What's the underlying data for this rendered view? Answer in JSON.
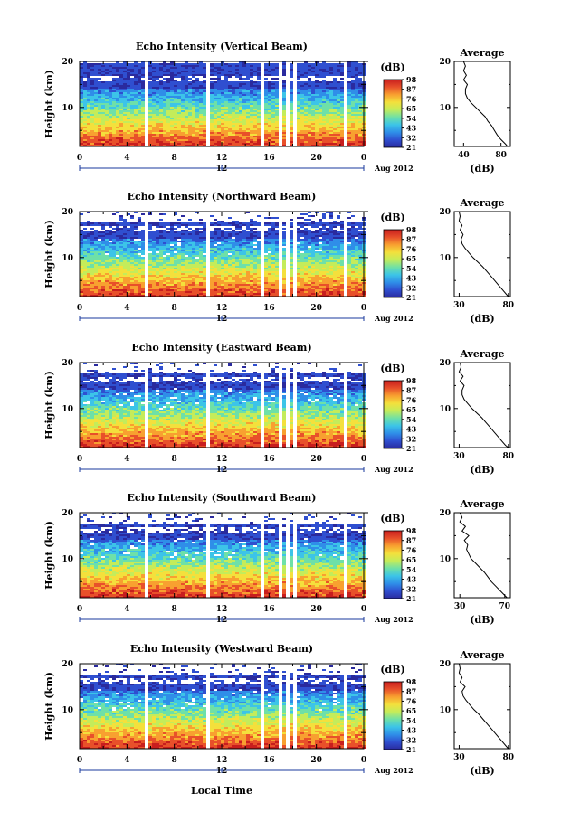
{
  "figure": {
    "date_label": "Aug 2012",
    "xlabel": "Local Time",
    "colorbar_unit": "(dB)",
    "avg_title": "Average",
    "avg_xlabel": "(dB)"
  },
  "chart_data": [
    {
      "type": "heatmap",
      "title": "Echo Intensity (Vertical Beam)",
      "ylabel": "Height (km)",
      "xlim": [
        0,
        24
      ],
      "ylim": [
        1.5,
        20
      ],
      "xticks": [
        "0",
        "4",
        "8",
        "12",
        "16",
        "20",
        "0"
      ],
      "yticks": [
        "20",
        "10"
      ],
      "mid_tick": "12",
      "colorbar_ticks": [
        "98",
        "87",
        "76",
        "65",
        "54",
        "43",
        "32",
        "21"
      ],
      "gaps_hours": [
        [
          5.4,
          5.8
        ],
        [
          10.6,
          11.0
        ],
        [
          15.0,
          15.4
        ],
        [
          16.7,
          17.0
        ],
        [
          17.4,
          17.7
        ],
        [
          17.9,
          18.2
        ],
        [
          22.2,
          22.6
        ]
      ],
      "average": {
        "xticks": [
          "40",
          "80"
        ],
        "xlim": [
          30,
          90
        ],
        "yticks": [
          "20",
          "10"
        ],
        "profile": [
          [
            87,
            1.5
          ],
          [
            85,
            2
          ],
          [
            80,
            3
          ],
          [
            76,
            4
          ],
          [
            73,
            5
          ],
          [
            70,
            6
          ],
          [
            66,
            7
          ],
          [
            63,
            8
          ],
          [
            58,
            9
          ],
          [
            53,
            10
          ],
          [
            48,
            11
          ],
          [
            44,
            12
          ],
          [
            42,
            13
          ],
          [
            42,
            14
          ],
          [
            44,
            15
          ],
          [
            40,
            16
          ],
          [
            43,
            17
          ],
          [
            40,
            18
          ],
          [
            42,
            19
          ],
          [
            40,
            20
          ]
        ]
      }
    },
    {
      "type": "heatmap",
      "title": "Echo Intensity (Northward Beam)",
      "ylabel": "Height (km)",
      "xlim": [
        0,
        24
      ],
      "ylim": [
        1.5,
        20
      ],
      "xticks": [
        "0",
        "4",
        "8",
        "12",
        "16",
        "20",
        "0"
      ],
      "yticks": [
        "20",
        "10"
      ],
      "mid_tick": "12",
      "colorbar_ticks": [
        "98",
        "87",
        "76",
        "65",
        "54",
        "43",
        "32",
        "21"
      ],
      "gaps_hours": [
        [
          5.4,
          5.8
        ],
        [
          10.6,
          11.0
        ],
        [
          15.0,
          15.4
        ],
        [
          16.7,
          17.0
        ],
        [
          17.4,
          17.7
        ],
        [
          17.9,
          18.2
        ],
        [
          22.2,
          22.6
        ]
      ],
      "average": {
        "xticks": [
          "30",
          "80"
        ],
        "xlim": [
          25,
          82
        ],
        "yticks": [
          "20",
          "10"
        ],
        "profile": [
          [
            80,
            1.5
          ],
          [
            78,
            2
          ],
          [
            74,
            3
          ],
          [
            70,
            4
          ],
          [
            66,
            5
          ],
          [
            62,
            6
          ],
          [
            58,
            7
          ],
          [
            54,
            8
          ],
          [
            49,
            9
          ],
          [
            44,
            10
          ],
          [
            40,
            11
          ],
          [
            36,
            12
          ],
          [
            33,
            13
          ],
          [
            32,
            14
          ],
          [
            34,
            15
          ],
          [
            31,
            16
          ],
          [
            33,
            17
          ],
          [
            30,
            18
          ],
          [
            31,
            19
          ],
          [
            30,
            20
          ]
        ]
      }
    },
    {
      "type": "heatmap",
      "title": "Echo Intensity (Eastward Beam)",
      "ylabel": "Height (km)",
      "xlim": [
        0,
        24
      ],
      "ylim": [
        1.5,
        20
      ],
      "xticks": [
        "0",
        "4",
        "8",
        "12",
        "16",
        "20",
        "0"
      ],
      "yticks": [
        "20",
        "10"
      ],
      "mid_tick": "12",
      "colorbar_ticks": [
        "98",
        "87",
        "76",
        "65",
        "54",
        "43",
        "32",
        "21"
      ],
      "gaps_hours": [
        [
          5.4,
          5.8
        ],
        [
          10.6,
          11.0
        ],
        [
          15.0,
          15.4
        ],
        [
          16.7,
          17.0
        ],
        [
          17.4,
          17.7
        ],
        [
          17.9,
          18.2
        ],
        [
          22.2,
          22.6
        ]
      ],
      "average": {
        "xticks": [
          "30",
          "80"
        ],
        "xlim": [
          25,
          82
        ],
        "yticks": [
          "20",
          "10"
        ],
        "profile": [
          [
            80,
            1.5
          ],
          [
            77,
            2
          ],
          [
            73,
            3
          ],
          [
            69,
            4
          ],
          [
            65,
            5
          ],
          [
            61,
            6
          ],
          [
            57,
            7
          ],
          [
            53,
            8
          ],
          [
            48,
            9
          ],
          [
            43,
            10
          ],
          [
            39,
            11
          ],
          [
            35,
            12
          ],
          [
            33,
            13
          ],
          [
            33,
            14
          ],
          [
            35,
            15
          ],
          [
            31,
            16
          ],
          [
            34,
            17
          ],
          [
            30,
            18
          ],
          [
            32,
            19
          ],
          [
            31,
            20
          ]
        ]
      }
    },
    {
      "type": "heatmap",
      "title": "Echo Intensity (Southward Beam)",
      "ylabel": "Height (km)",
      "xlim": [
        0,
        24
      ],
      "ylim": [
        1.5,
        20
      ],
      "xticks": [
        "0",
        "4",
        "8",
        "12",
        "16",
        "20",
        "0"
      ],
      "yticks": [
        "20",
        "10"
      ],
      "mid_tick": "12",
      "colorbar_ticks": [
        "98",
        "87",
        "76",
        "65",
        "54",
        "43",
        "32",
        "21"
      ],
      "gaps_hours": [
        [
          5.4,
          5.8
        ],
        [
          10.6,
          11.0
        ],
        [
          15.0,
          15.4
        ],
        [
          16.7,
          17.0
        ],
        [
          17.4,
          17.7
        ],
        [
          17.9,
          18.2
        ],
        [
          22.2,
          22.6
        ]
      ],
      "average": {
        "xticks": [
          "30",
          "70"
        ],
        "xlim": [
          25,
          75
        ],
        "yticks": [
          "20",
          "10"
        ],
        "profile": [
          [
            72,
            1.5
          ],
          [
            70,
            2
          ],
          [
            66,
            3
          ],
          [
            62,
            4
          ],
          [
            58,
            5
          ],
          [
            55,
            6
          ],
          [
            52,
            7
          ],
          [
            48,
            8
          ],
          [
            44,
            9
          ],
          [
            40,
            10
          ],
          [
            38,
            11
          ],
          [
            36,
            12
          ],
          [
            37,
            13
          ],
          [
            34,
            14
          ],
          [
            38,
            15
          ],
          [
            32,
            16
          ],
          [
            35,
            17
          ],
          [
            30,
            18
          ],
          [
            32,
            19
          ],
          [
            30,
            20
          ]
        ]
      }
    },
    {
      "type": "heatmap",
      "title": "Echo Intensity (Westward Beam)",
      "ylabel": "Height (km)",
      "xlim": [
        0,
        24
      ],
      "ylim": [
        1.5,
        20
      ],
      "xticks": [
        "0",
        "4",
        "8",
        "12",
        "16",
        "20",
        "0"
      ],
      "yticks": [
        "20",
        "10"
      ],
      "mid_tick": "12",
      "colorbar_ticks": [
        "98",
        "87",
        "76",
        "65",
        "54",
        "43",
        "32",
        "21"
      ],
      "gaps_hours": [
        [
          5.4,
          5.8
        ],
        [
          10.6,
          11.0
        ],
        [
          15.0,
          15.4
        ],
        [
          16.7,
          17.0
        ],
        [
          17.4,
          17.7
        ],
        [
          17.9,
          18.2
        ],
        [
          22.2,
          22.6
        ]
      ],
      "average": {
        "xticks": [
          "30",
          "80"
        ],
        "xlim": [
          25,
          82
        ],
        "yticks": [
          "20",
          "10"
        ],
        "profile": [
          [
            80,
            1.5
          ],
          [
            78,
            2
          ],
          [
            74,
            3
          ],
          [
            70,
            4
          ],
          [
            66,
            5
          ],
          [
            62,
            6
          ],
          [
            58,
            7
          ],
          [
            54,
            8
          ],
          [
            50,
            9
          ],
          [
            45,
            10
          ],
          [
            41,
            11
          ],
          [
            37,
            12
          ],
          [
            34,
            13
          ],
          [
            33,
            14
          ],
          [
            36,
            15
          ],
          [
            31,
            16
          ],
          [
            33,
            17
          ],
          [
            30,
            18
          ],
          [
            31,
            19
          ],
          [
            30,
            20
          ]
        ]
      }
    }
  ],
  "colormap": [
    "#2a2a9e",
    "#2f4fd0",
    "#2f8ee8",
    "#3cc4e8",
    "#6ee0a8",
    "#c4ec5a",
    "#f4e03c",
    "#f8a030",
    "#e8502a",
    "#c81e1e"
  ]
}
